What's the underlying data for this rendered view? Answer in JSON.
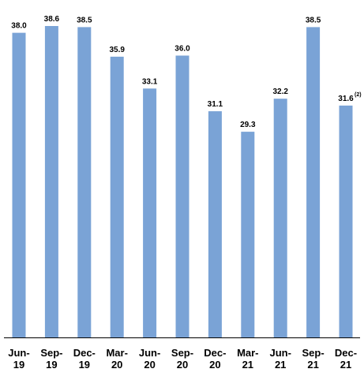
{
  "chart_data": {
    "type": "bar",
    "title": "",
    "xlabel": "",
    "ylabel": "",
    "categories": [
      [
        "Jun-",
        "19"
      ],
      [
        "Sep-",
        "19"
      ],
      [
        "Dec-",
        "19"
      ],
      [
        "Mar-",
        "20"
      ],
      [
        "Jun-",
        "20"
      ],
      [
        "Sep-",
        "20"
      ],
      [
        "Dec-",
        "20"
      ],
      [
        "Mar-",
        "21"
      ],
      [
        "Jun-",
        "21"
      ],
      [
        "Sep-",
        "21"
      ],
      [
        "Dec-",
        "21"
      ]
    ],
    "values": [
      38.0,
      38.6,
      38.5,
      35.9,
      33.1,
      36.0,
      31.1,
      29.3,
      32.2,
      38.5,
      31.6
    ],
    "data_labels": [
      "38.0",
      "38.6",
      "38.5",
      "35.9",
      "33.1",
      "36.0",
      "31.1",
      "29.3",
      "32.2",
      "38.5",
      "31.6"
    ],
    "footnotes": [
      "",
      "",
      "",
      "",
      "",
      "",
      "",
      "",
      "",
      "",
      "(2)"
    ],
    "ylim": [
      11.2,
      39.5
    ],
    "grid": false,
    "legend": "none",
    "colors": {
      "bar": "#7aa3d6",
      "axis": "#000000"
    }
  }
}
